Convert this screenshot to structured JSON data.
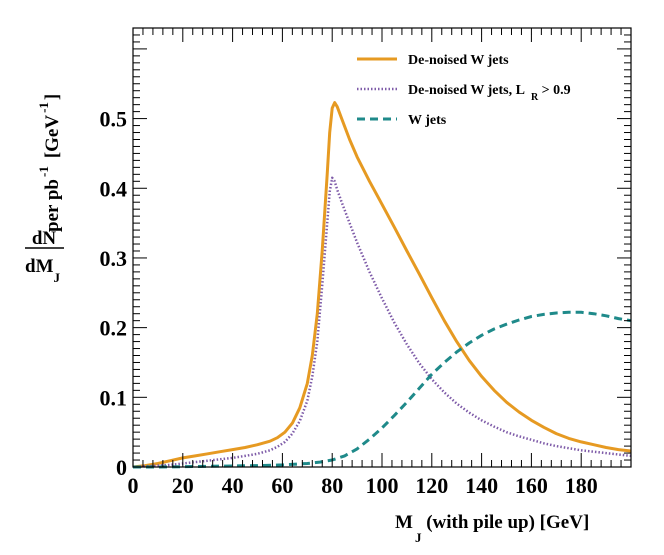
{
  "chart_data": {
    "type": "line",
    "xlim": [
      0,
      200
    ],
    "ylim": [
      0,
      0.63
    ],
    "x_ticks": [
      0,
      20,
      40,
      60,
      80,
      100,
      120,
      140,
      160,
      180
    ],
    "y_ticks": [
      0,
      0.1,
      0.2,
      0.3,
      0.4,
      0.5
    ],
    "x_tick_labels": [
      "0",
      "20",
      "40",
      "60",
      "80",
      "100",
      "120",
      "140",
      "160",
      "180"
    ],
    "y_tick_labels": [
      "0",
      "0.1",
      "0.2",
      "0.3",
      "0.4",
      "0.5"
    ],
    "grid": false,
    "legend_position": "top-right",
    "xlabel": {
      "main": "M",
      "sub": "J",
      "rest": " (with pile up) [GeV]"
    },
    "ylabel": {
      "num": "dN",
      "den_main": "dM",
      "den_sub": "J",
      "text": "per pb",
      "sup": "-1",
      "unit_open": "[GeV",
      "unit_sup": "-1",
      "unit_close": "]"
    },
    "series": [
      {
        "name": "De-noised W jets",
        "legend_parts": [
          "De-noised W jets"
        ],
        "color": "#e69a22",
        "style": "solid",
        "points": [
          [
            0,
            0
          ],
          [
            5,
            0.002
          ],
          [
            10,
            0.005
          ],
          [
            15,
            0.009
          ],
          [
            20,
            0.013
          ],
          [
            25,
            0.016
          ],
          [
            30,
            0.019
          ],
          [
            35,
            0.022
          ],
          [
            40,
            0.025
          ],
          [
            45,
            0.028
          ],
          [
            50,
            0.032
          ],
          [
            55,
            0.037
          ],
          [
            58,
            0.042
          ],
          [
            61,
            0.05
          ],
          [
            64,
            0.063
          ],
          [
            67,
            0.085
          ],
          [
            70,
            0.12
          ],
          [
            72,
            0.16
          ],
          [
            74,
            0.22
          ],
          [
            76,
            0.31
          ],
          [
            78,
            0.42
          ],
          [
            79,
            0.48
          ],
          [
            80,
            0.515
          ],
          [
            81,
            0.523
          ],
          [
            82,
            0.517
          ],
          [
            84,
            0.498
          ],
          [
            87,
            0.47
          ],
          [
            90,
            0.445
          ],
          [
            95,
            0.41
          ],
          [
            100,
            0.377
          ],
          [
            105,
            0.344
          ],
          [
            110,
            0.31
          ],
          [
            115,
            0.277
          ],
          [
            120,
            0.243
          ],
          [
            125,
            0.21
          ],
          [
            130,
            0.18
          ],
          [
            135,
            0.153
          ],
          [
            140,
            0.13
          ],
          [
            145,
            0.11
          ],
          [
            150,
            0.093
          ],
          [
            155,
            0.079
          ],
          [
            160,
            0.067
          ],
          [
            165,
            0.057
          ],
          [
            170,
            0.048
          ],
          [
            175,
            0.041
          ],
          [
            180,
            0.036
          ],
          [
            185,
            0.032
          ],
          [
            190,
            0.028
          ],
          [
            195,
            0.025
          ],
          [
            200,
            0.023
          ]
        ]
      },
      {
        "name": "De-noised W jets, L_R > 0.9",
        "legend_parts": [
          "De-noised W jets, L",
          "R",
          " > 0.9"
        ],
        "color": "#7e5ba8",
        "style": "dotted",
        "points": [
          [
            0,
            0
          ],
          [
            5,
            0.001
          ],
          [
            10,
            0.002
          ],
          [
            15,
            0.003
          ],
          [
            20,
            0.005
          ],
          [
            25,
            0.007
          ],
          [
            30,
            0.009
          ],
          [
            35,
            0.011
          ],
          [
            40,
            0.013
          ],
          [
            45,
            0.016
          ],
          [
            50,
            0.019
          ],
          [
            55,
            0.024
          ],
          [
            58,
            0.029
          ],
          [
            61,
            0.036
          ],
          [
            64,
            0.048
          ],
          [
            67,
            0.066
          ],
          [
            70,
            0.095
          ],
          [
            72,
            0.13
          ],
          [
            74,
            0.18
          ],
          [
            76,
            0.26
          ],
          [
            78,
            0.35
          ],
          [
            79,
            0.395
          ],
          [
            80,
            0.415
          ],
          [
            81,
            0.41
          ],
          [
            82,
            0.398
          ],
          [
            84,
            0.378
          ],
          [
            87,
            0.35
          ],
          [
            90,
            0.322
          ],
          [
            95,
            0.28
          ],
          [
            100,
            0.242
          ],
          [
            105,
            0.207
          ],
          [
            110,
            0.176
          ],
          [
            115,
            0.149
          ],
          [
            120,
            0.126
          ],
          [
            125,
            0.107
          ],
          [
            130,
            0.091
          ],
          [
            135,
            0.078
          ],
          [
            140,
            0.067
          ],
          [
            145,
            0.058
          ],
          [
            150,
            0.05
          ],
          [
            155,
            0.044
          ],
          [
            160,
            0.039
          ],
          [
            165,
            0.034
          ],
          [
            170,
            0.03
          ],
          [
            175,
            0.027
          ],
          [
            180,
            0.024
          ],
          [
            185,
            0.022
          ],
          [
            190,
            0.02
          ],
          [
            195,
            0.018
          ],
          [
            200,
            0.016
          ]
        ]
      },
      {
        "name": "W jets",
        "legend_parts": [
          "W jets"
        ],
        "color": "#1f8a8a",
        "style": "dashed",
        "points": [
          [
            0,
            0
          ],
          [
            10,
            0
          ],
          [
            20,
            0.0005
          ],
          [
            30,
            0.001
          ],
          [
            40,
            0.0015
          ],
          [
            50,
            0.002
          ],
          [
            60,
            0.003
          ],
          [
            70,
            0.005
          ],
          [
            75,
            0.007
          ],
          [
            80,
            0.01
          ],
          [
            85,
            0.016
          ],
          [
            90,
            0.026
          ],
          [
            95,
            0.04
          ],
          [
            100,
            0.056
          ],
          [
            105,
            0.074
          ],
          [
            110,
            0.093
          ],
          [
            115,
            0.113
          ],
          [
            120,
            0.133
          ],
          [
            125,
            0.15
          ],
          [
            130,
            0.165
          ],
          [
            135,
            0.178
          ],
          [
            140,
            0.189
          ],
          [
            145,
            0.198
          ],
          [
            150,
            0.205
          ],
          [
            155,
            0.211
          ],
          [
            160,
            0.216
          ],
          [
            165,
            0.219
          ],
          [
            170,
            0.221
          ],
          [
            175,
            0.222
          ],
          [
            180,
            0.222
          ],
          [
            185,
            0.22
          ],
          [
            190,
            0.217
          ],
          [
            195,
            0.213
          ],
          [
            200,
            0.21
          ]
        ]
      }
    ]
  }
}
